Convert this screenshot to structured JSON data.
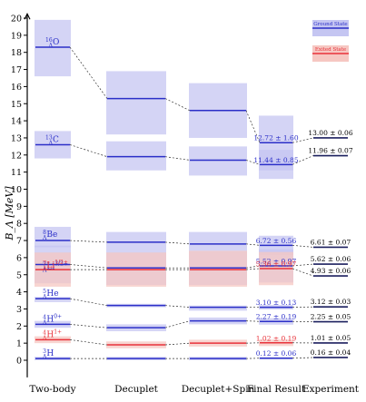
{
  "chart_data": {
    "type": "range-levels",
    "ylabel": "B_Λ [MeV]",
    "ylim": [
      -1,
      20
    ],
    "yticks": [
      0,
      1,
      2,
      3,
      4,
      5,
      6,
      7,
      8,
      9,
      10,
      11,
      12,
      13,
      14,
      15,
      16,
      17,
      18,
      19,
      20
    ],
    "columns": [
      "Two-body",
      "Decuplet",
      "Decuplet+Spin",
      "Final Result",
      "Experiment"
    ],
    "legend": [
      {
        "label": "Ground State",
        "color": "#2b2fc8",
        "fill": "#c5c6f2"
      },
      {
        "label": "Exited State",
        "color": "#e8323a",
        "fill": "#f6c7c2"
      }
    ],
    "colors": {
      "ground_line": "#2b2fc8",
      "ground_fill": "#c5c6f2",
      "excited_line": "#e8323a",
      "excited_fill": "#f6c7c2",
      "overlap_fill": "#c993c9"
    },
    "states": [
      {
        "label": "Λ16O",
        "kind": "ground",
        "values": [
          [
            18.3,
            16.6,
            19.9
          ],
          [
            15.3,
            13.2,
            16.9
          ],
          [
            14.6,
            13.0,
            16.2
          ],
          [
            12.72,
            11.1,
            14.3
          ]
        ],
        "result_text": "12.72 ± 1.60",
        "experiment_text": "13.00 ± 0.06",
        "experiment": 13.0
      },
      {
        "label": "Λ13C",
        "kind": "ground",
        "values": [
          [
            12.6,
            11.8,
            13.4
          ],
          [
            11.9,
            11.1,
            12.8
          ],
          [
            11.7,
            10.8,
            12.5
          ],
          [
            11.44,
            10.6,
            12.3
          ]
        ],
        "result_text": "11.44 ± 0.85",
        "experiment_text": "11.96 ± 0.07",
        "experiment": 11.96
      },
      {
        "label": "Λ8Be",
        "kind": "ground",
        "values": [
          [
            7.0,
            6.6,
            7.8
          ],
          [
            6.9,
            6.5,
            7.5
          ],
          [
            6.8,
            6.4,
            7.5
          ],
          [
            6.72,
            6.16,
            7.28
          ]
        ],
        "result_text": "6.72 ± 0.56",
        "experiment_text": "6.61 ± 0.07",
        "experiment": 6.61
      },
      {
        "label": "Λ7Li3/2+",
        "kind": "ground",
        "values": [
          [
            5.6,
            4.5,
            6.7
          ],
          [
            5.4,
            4.4,
            6.5
          ],
          [
            5.4,
            4.4,
            6.4
          ],
          [
            5.52,
            4.55,
            6.49
          ]
        ],
        "result_text": "5.52 ± 0.97",
        "experiment_text": "5.62 ± 0.06",
        "experiment": 5.62
      },
      {
        "label": "Λ7Li1/2+",
        "kind": "excited",
        "values": [
          [
            5.3,
            4.3,
            6.3
          ],
          [
            5.3,
            4.3,
            6.3
          ],
          [
            5.3,
            4.3,
            6.4
          ],
          [
            5.36,
            4.39,
            6.33
          ]
        ],
        "result_text": "5.36 ± 0.97",
        "experiment_text": "4.93 ± 0.06",
        "experiment": 4.93
      },
      {
        "label": "Λ5He",
        "kind": "ground",
        "values": [
          [
            3.6,
            3.4,
            3.7
          ],
          [
            3.2,
            3.1,
            3.3
          ],
          [
            3.1,
            2.9,
            3.2
          ],
          [
            3.1,
            2.97,
            3.23
          ]
        ],
        "result_text": "3.10 ± 0.13",
        "experiment_text": "3.12 ± 0.03",
        "experiment": 3.12
      },
      {
        "label": "Λ4H0+",
        "kind": "ground",
        "values": [
          [
            2.1,
            1.9,
            2.3
          ],
          [
            1.9,
            1.7,
            2.1
          ],
          [
            2.3,
            2.1,
            2.5
          ],
          [
            2.27,
            2.08,
            2.46
          ]
        ],
        "result_text": "2.27 ± 0.19",
        "experiment_text": "2.25 ± 0.05",
        "experiment": 2.25
      },
      {
        "label": "Λ4H1+",
        "kind": "excited",
        "values": [
          [
            1.2,
            1.0,
            1.4
          ],
          [
            0.9,
            0.7,
            1.1
          ],
          [
            1.0,
            0.8,
            1.2
          ],
          [
            1.02,
            0.83,
            1.21
          ]
        ],
        "result_text": "1.02 ± 0.19",
        "experiment_text": "1.01 ± 0.05",
        "experiment": 1.01
      },
      {
        "label": "Λ3H",
        "kind": "ground",
        "values": [
          [
            0.1,
            0.0,
            0.2
          ],
          [
            0.1,
            0.0,
            0.2
          ],
          [
            0.1,
            0.0,
            0.2
          ],
          [
            0.12,
            0.06,
            0.18
          ]
        ],
        "result_text": "0.12 ± 0.06",
        "experiment_text": "0.16 ± 0.04",
        "experiment": 0.16
      }
    ]
  }
}
